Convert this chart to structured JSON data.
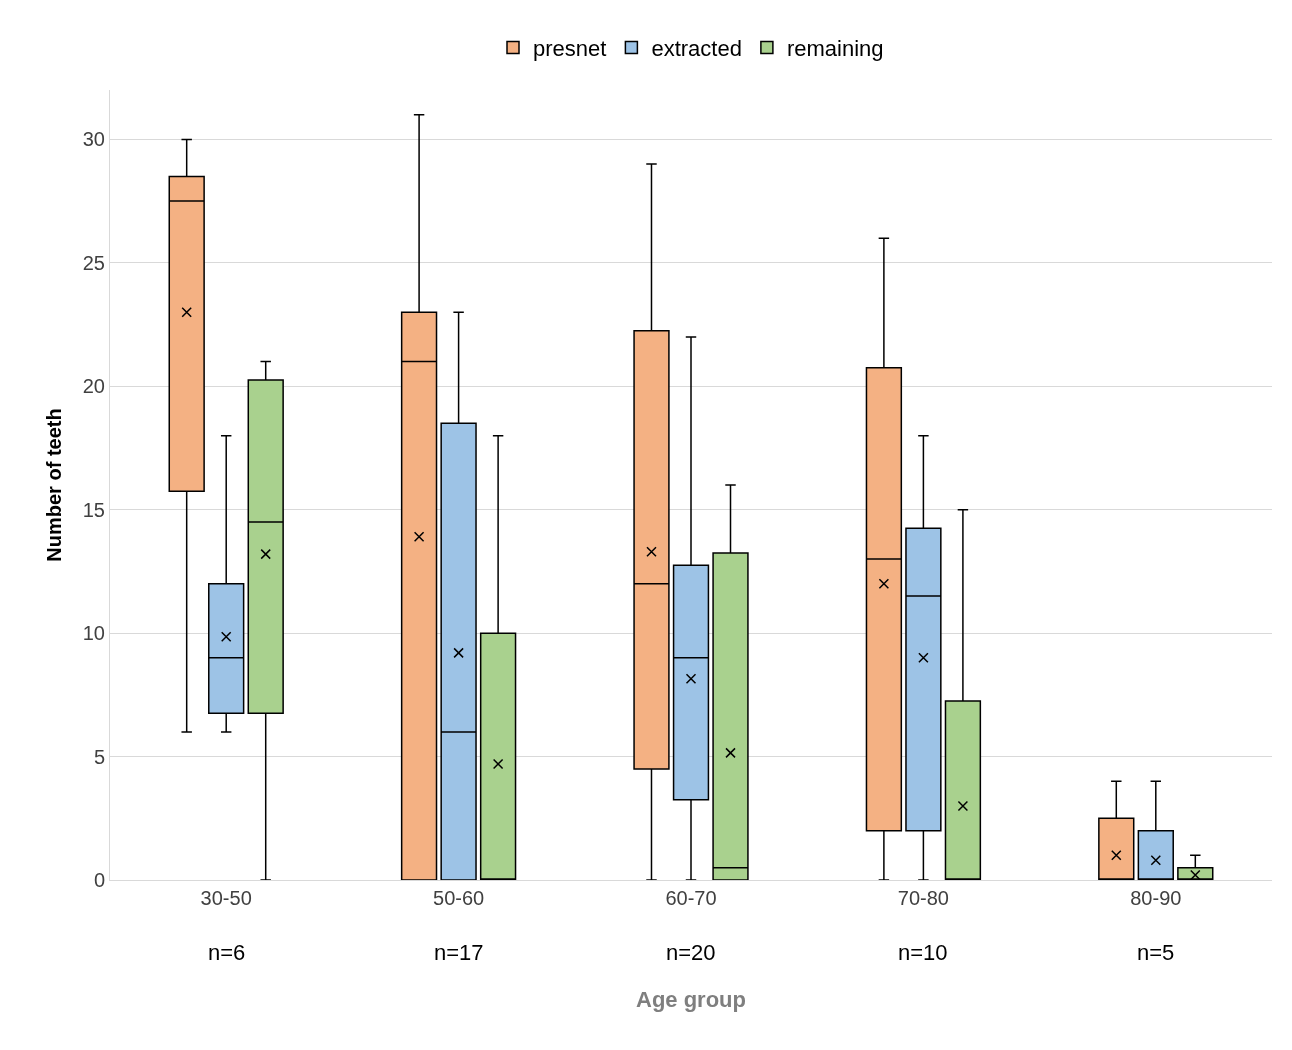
{
  "chart_data": {
    "type": "box",
    "xlabel": "Age group",
    "ylabel": "Number of teeth",
    "categories": [
      "30-50",
      "50-60",
      "60-70",
      "70-80",
      "80-90"
    ],
    "ylim": [
      0,
      32
    ],
    "yticks": [
      0,
      5,
      10,
      15,
      20,
      25,
      30
    ],
    "grid": "y",
    "legend": "top",
    "series": [
      {
        "name": "presnet",
        "color": "#f4b183",
        "boxes": [
          {
            "low": 6,
            "q1": 15.75,
            "median": 27.5,
            "q3": 28.5,
            "high": 30,
            "mean": 23
          },
          {
            "low": 0,
            "q1": 0,
            "median": 21,
            "q3": 23,
            "high": 31,
            "mean": 13.9
          },
          {
            "low": 0,
            "q1": 4.5,
            "median": 12,
            "q3": 22.25,
            "high": 29,
            "mean": 13.3
          },
          {
            "low": 0,
            "q1": 2,
            "median": 13,
            "q3": 20.75,
            "high": 26,
            "mean": 12
          },
          {
            "low": 0,
            "q1": 0,
            "median": 0,
            "q3": 2.5,
            "high": 4,
            "mean": 1
          }
        ]
      },
      {
        "name": "extracted",
        "color": "#9dc3e6",
        "boxes": [
          {
            "low": 6,
            "q1": 6.75,
            "median": 9,
            "q3": 12,
            "high": 18,
            "mean": 9.85
          },
          {
            "low": 0,
            "q1": 0,
            "median": 6,
            "q3": 18.5,
            "high": 23,
            "mean": 9.2
          },
          {
            "low": 0,
            "q1": 3.25,
            "median": 9,
            "q3": 12.75,
            "high": 22,
            "mean": 8.15
          },
          {
            "low": 0,
            "q1": 2,
            "median": 11.5,
            "q3": 14.25,
            "high": 18,
            "mean": 9
          },
          {
            "low": 0,
            "q1": 0,
            "median": 0,
            "q3": 2,
            "high": 4,
            "mean": 0.8
          }
        ]
      },
      {
        "name": "remaining",
        "color": "#a9d18e",
        "boxes": [
          {
            "low": 0,
            "q1": 6.75,
            "median": 14.5,
            "q3": 20.25,
            "high": 21,
            "mean": 13.2
          },
          {
            "low": 0,
            "q1": 0,
            "median": 0,
            "q3": 10,
            "high": 18,
            "mean": 4.7
          },
          {
            "low": 0,
            "q1": 0,
            "median": 0.5,
            "q3": 13.25,
            "high": 16,
            "mean": 5.15
          },
          {
            "low": 0,
            "q1": 0,
            "median": 0,
            "q3": 7.25,
            "high": 15,
            "mean": 3
          },
          {
            "low": 0,
            "q1": 0,
            "median": 0,
            "q3": 0.5,
            "high": 1,
            "mean": 0.2
          }
        ]
      }
    ],
    "annotations": [
      "n=6",
      "n=17",
      "n=20",
      "n=10",
      "n=5"
    ]
  }
}
